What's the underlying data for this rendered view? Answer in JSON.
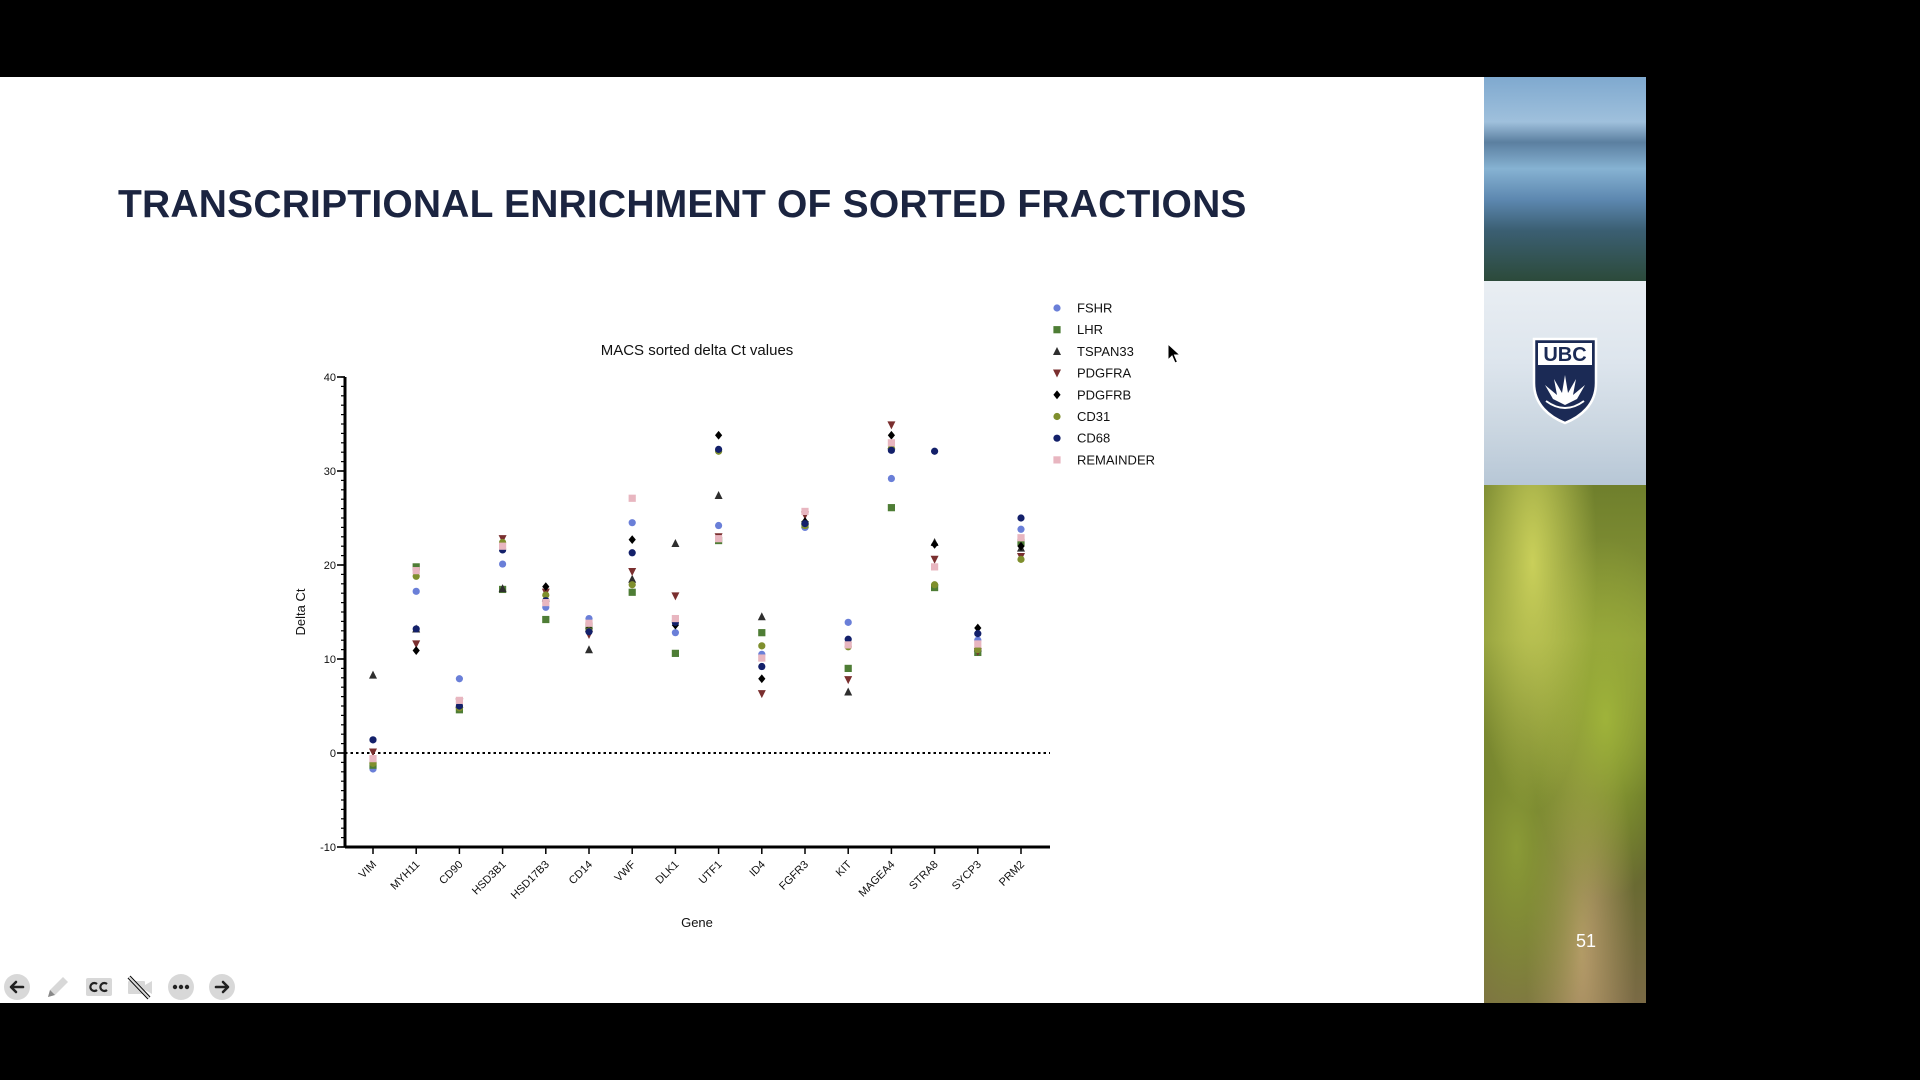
{
  "slide": {
    "title": "TRANSCRIPTIONAL ENRICHMENT OF SORTED FRACTIONS",
    "page_number": "51",
    "logo_text": "UBC"
  },
  "toolbar": {
    "items": [
      {
        "name": "previous-slide-button",
        "icon": "arrow-left-circle-icon"
      },
      {
        "name": "pen-tool-button",
        "icon": "pencil-icon"
      },
      {
        "name": "captions-button",
        "icon": "cc-icon"
      },
      {
        "name": "camera-off-button",
        "icon": "video-off-icon"
      },
      {
        "name": "more-options-button",
        "icon": "ellipsis-circle-icon"
      },
      {
        "name": "next-slide-button",
        "icon": "arrow-right-circle-icon"
      }
    ]
  },
  "chart_data": {
    "type": "scatter",
    "title": "MACS sorted delta Ct values",
    "xlabel": "Gene",
    "ylabel": "Delta Ct",
    "ylim": [
      -10,
      40
    ],
    "yticks": [
      -10,
      0,
      10,
      20,
      30,
      40
    ],
    "reference_line": 0,
    "legend_position": "top-right",
    "categories": [
      "VIM",
      "MYH11",
      "CD90",
      "HSD3B1",
      "HSD17B3",
      "CD14",
      "VWF",
      "DLK1",
      "UTF1",
      "ID4",
      "FGFR3",
      "KIT",
      "MAGEA4",
      "STRA8",
      "SYCP3",
      "PRM2"
    ],
    "series": [
      {
        "name": "FSHR",
        "marker": "circle",
        "color": "#6a7fd8",
        "values": [
          -1.7,
          17.2,
          7.9,
          20.1,
          15.5,
          14.3,
          24.5,
          12.8,
          24.2,
          10.5,
          24.0,
          13.9,
          29.2,
          17.8,
          12.0,
          23.8
        ]
      },
      {
        "name": "LHR",
        "marker": "square",
        "color": "#4e7d35",
        "values": [
          -1.3,
          19.8,
          4.6,
          17.4,
          14.2,
          13.5,
          17.1,
          10.6,
          22.6,
          12.8,
          24.3,
          9.0,
          26.1,
          17.6,
          10.7,
          22.4
        ]
      },
      {
        "name": "TSPAN33",
        "marker": "triangle-up",
        "color": "#2e2e2e",
        "values": [
          8.3,
          13.2,
          5.2,
          17.5,
          16.5,
          11.0,
          18.5,
          22.3,
          27.4,
          14.5,
          24.7,
          6.5,
          32.7,
          22.4,
          11.2,
          21.8
        ]
      },
      {
        "name": "PDGFRA",
        "marker": "triangle-down",
        "color": "#7a2f2f",
        "values": [
          0.1,
          11.6,
          5.4,
          22.8,
          17.1,
          12.6,
          19.3,
          16.7,
          23.0,
          6.3,
          25.3,
          7.8,
          34.9,
          20.6,
          10.8,
          20.9
        ]
      },
      {
        "name": "PDGFRB",
        "marker": "diamond",
        "color": "#000000",
        "values": [
          -0.9,
          10.9,
          5.1,
          21.8,
          17.7,
          13.2,
          22.7,
          13.6,
          33.8,
          7.9,
          24.6,
          11.8,
          33.8,
          22.2,
          13.3,
          22.0
        ]
      },
      {
        "name": "CD31",
        "marker": "circle",
        "color": "#7f8f2d",
        "values": [
          -1.1,
          18.8,
          4.8,
          22.4,
          16.8,
          13.0,
          17.9,
          14.1,
          32.1,
          11.4,
          24.2,
          11.3,
          32.4,
          17.9,
          11.0,
          20.6
        ]
      },
      {
        "name": "CD68",
        "marker": "circle",
        "color": "#13206a",
        "values": [
          1.4,
          13.2,
          5.0,
          21.6,
          16.2,
          12.9,
          21.3,
          13.9,
          32.3,
          9.2,
          24.4,
          12.1,
          32.2,
          32.1,
          12.7,
          25.0
        ]
      },
      {
        "name": "REMAINDER",
        "marker": "square",
        "color": "#e8b6c0",
        "values": [
          -0.6,
          19.4,
          5.6,
          22.0,
          16.0,
          13.8,
          27.1,
          14.3,
          22.8,
          10.1,
          25.7,
          11.5,
          33.0,
          19.8,
          11.6,
          22.9
        ]
      }
    ]
  }
}
